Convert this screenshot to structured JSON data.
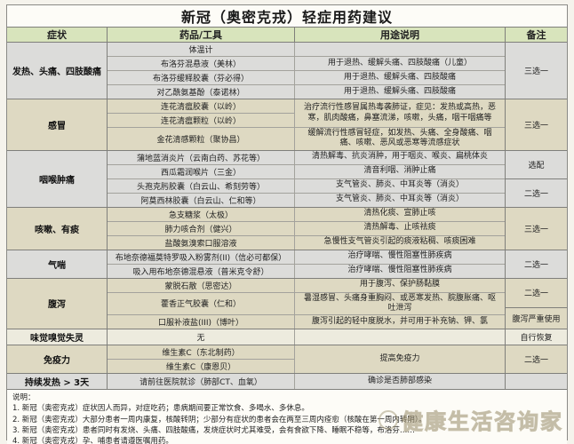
{
  "title": "新冠（奥密克戎）轻症用药建议",
  "table": {
    "header": {
      "symptom": "症状",
      "drug": "药品/工具",
      "usage": "用途说明",
      "note": "备注"
    },
    "groups": [
      {
        "symptom": "发热、头痛、四肢酸痛",
        "tone": "gray",
        "chunks": [
          {
            "drugs": [
              "体温计"
            ],
            "usage": ""
          },
          {
            "drugs": [
              "布洛芬混悬液（美林）"
            ],
            "usage": "用于退热、缓解头痛、四肢酸痛（儿童）"
          },
          {
            "drugs": [
              "布洛芬缓释胶囊（芬必得）"
            ],
            "usage": "用于退热、缓解头痛、四肢酸痛"
          },
          {
            "drugs": [
              "对乙酰氨基酚（泰诺林）"
            ],
            "usage": "用于退热、缓解头痛、四肢酸痛"
          }
        ],
        "notes": [
          {
            "label": "三选一",
            "span": 4
          }
        ]
      },
      {
        "symptom": "感冒",
        "tone": "beige",
        "chunks": [
          {
            "drugs": [
              "连花清瘟胶囊（以岭）",
              "连花清瘟颗粒（以岭）"
            ],
            "usage": "治疗流行性感冒属热毒袭肺证，症见：发热或高热，恶寒，肌肉酸痛，鼻塞流涕，咳嗽，头痛，咽干咽痛等"
          },
          {
            "drugs": [
              "金花清感颗粒（聚协昌）"
            ],
            "usage": "缓解流行性感冒轻症，如发热、头痛、全身酸痛、咽痛、咳嗽、恶风或恶寒等流感症状"
          }
        ],
        "notes": [
          {
            "label": "三选一",
            "span": 3
          }
        ]
      },
      {
        "symptom": "咽喉肿痛",
        "tone": "gray",
        "chunks": [
          {
            "drugs": [
              "蒲地蓝消炎片（云南白药、苏花等）"
            ],
            "usage": "清热解毒、抗炎消肿，用于咽炎、喉炎、扁桃体炎"
          },
          {
            "drugs": [
              "西瓜霜润喉片（三金）"
            ],
            "usage": "清音利咽、消肿止痛"
          },
          {
            "drugs": [
              "头孢克肟胶囊（白云山、希刻劳等）"
            ],
            "usage": "支气管炎、肺炎、中耳炎等（消炎）"
          },
          {
            "drugs": [
              "阿莫西林胶囊（白云山、仁和等）"
            ],
            "usage": "支气管炎、肺炎、中耳炎等（消炎）"
          }
        ],
        "notes": [
          {
            "label": "选配",
            "span": 2
          },
          {
            "label": "二选一",
            "span": 2
          }
        ]
      },
      {
        "symptom": "咳嗽、有痰",
        "tone": "beige",
        "chunks": [
          {
            "drugs": [
              "急支糖浆（太极）"
            ],
            "usage": "清热化痰、宣肺止咳"
          },
          {
            "drugs": [
              "肺力咳合剂（健兴）"
            ],
            "usage": "清热解毒、止咳祛痰"
          },
          {
            "drugs": [
              "盐酸氨溴索口服溶液"
            ],
            "usage": "急慢性支气管炎引起的痰液粘稠、咳痰困难"
          }
        ],
        "notes": [
          {
            "label": "三选一",
            "span": 3
          }
        ]
      },
      {
        "symptom": "气喘",
        "tone": "gray",
        "chunks": [
          {
            "drugs": [
              "布地奈德福莫特罗吸入粉雾剂(II)（信必可都保）"
            ],
            "usage": "治疗哮喘、慢性阻塞性肺疾病"
          },
          {
            "drugs": [
              "吸入用布地奈德混悬液（普米克令舒）"
            ],
            "usage": "治疗哮喘、慢性阻塞性肺疾病"
          }
        ],
        "notes": [
          {
            "label": "二选一",
            "span": 2
          }
        ]
      },
      {
        "symptom": "腹泻",
        "tone": "beige",
        "chunks": [
          {
            "drugs": [
              "蒙脱石散（思密达）"
            ],
            "usage": "用于腹泻、保护肠黏膜"
          },
          {
            "drugs": [
              "藿香正气胶囊（仁和）"
            ],
            "usage": "暑湿感冒、头痛身重胸闷、或恶寒发热、脘腹胀痛、呕吐泄泻"
          },
          {
            "drugs": [
              "口服补液盐(III)（博叶）"
            ],
            "usage": "腹泻引起的轻中度脱水，并可用于补充钠、钾、氯"
          }
        ],
        "notes": [
          {
            "label": "二选一",
            "span": 2
          },
          {
            "label": "腹泻严重使用",
            "span": 1
          }
        ]
      },
      {
        "symptom": "味觉嗅觉失灵",
        "tone": "light",
        "chunks": [
          {
            "drugs": [
              "无"
            ],
            "usage": ""
          }
        ],
        "notes": [
          {
            "label": "自行恢复",
            "span": 1
          }
        ]
      },
      {
        "symptom": "免疫力",
        "tone": "beige",
        "chunks": [
          {
            "drugs": [
              "维生素C（东北制药）",
              "维生素C（康恩贝）"
            ],
            "usage": "提高免疫力"
          }
        ],
        "notes": [
          {
            "label": "二选一",
            "span": 2
          }
        ]
      },
      {
        "symptom": "持续发热 > 3天",
        "tone": "gray",
        "chunks": [
          {
            "drugs": [
              "请前往医院就诊（肺部CT、血氧）"
            ],
            "usage": "确诊是否肺部感染"
          }
        ],
        "notes": [
          {
            "label": "",
            "span": 1
          }
        ]
      }
    ]
  },
  "footer": {
    "heading": "说明：",
    "lines": [
      "1. 新冠（奥密克戎）症状因人而异，对症吃药；患病期间要正常饮食、多喝水、多休息。",
      "2. 新冠（奥密克戎）大部分患者一周内康复，核酸转阴；少部分有症状的患者会在两至三周内痊愈（核酸在第一周内转阴）。",
      "3. 新冠（奥密克戎）患者同时有发烧、头痛、四肢酸痛，发烧症状时尤其难受，会有食欲下降、睡眠不稳等，布洛芬……",
      "4. 新冠（奥密克戎）孕、哺患者请遵医嘱用药。"
    ]
  },
  "watermark": "健康生活咨询家",
  "colors": {
    "header_green": "#d8e4bc",
    "group_gray": "#dcdcda",
    "group_beige": "#ded9c2",
    "border_dark": "#7f7f7b",
    "border_inner": "#a3a29c"
  }
}
